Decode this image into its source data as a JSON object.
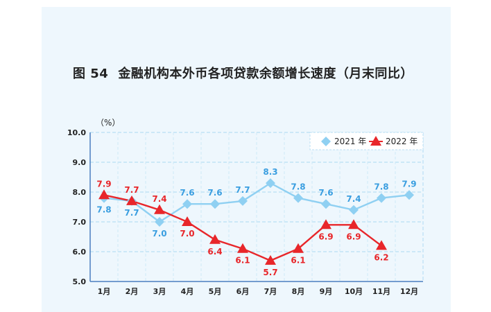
{
  "figure": {
    "number": "图 54",
    "title": "金融机构本外币各项贷款余额增长速度（月末同比）"
  },
  "chart_data": {
    "type": "line",
    "unit_label": "（%）",
    "categories": [
      "1月",
      "2月",
      "3月",
      "4月",
      "5月",
      "6月",
      "7月",
      "8月",
      "9月",
      "10月",
      "11月",
      "12月"
    ],
    "ylim": [
      5.0,
      10.0
    ],
    "yticks": [
      "5.0",
      "6.0",
      "7.0",
      "8.0",
      "9.0",
      "10.0"
    ],
    "grid": true,
    "legend_position": "top-right",
    "series": [
      {
        "name": "2021 年",
        "color": "#8fd0f2",
        "marker": "diamond",
        "values": [
          7.8,
          7.7,
          7.0,
          7.6,
          7.6,
          7.7,
          8.3,
          7.8,
          7.6,
          7.4,
          7.8,
          7.9
        ],
        "labels": [
          "7.8",
          "7.7",
          "7.0",
          "7.6",
          "7.6",
          "7.7",
          "8.3",
          "7.8",
          "7.6",
          "7.4",
          "7.8",
          "7.9"
        ]
      },
      {
        "name": "2022 年",
        "color": "#e8262a",
        "marker": "triangle",
        "values": [
          7.9,
          7.7,
          7.4,
          7.0,
          6.4,
          6.1,
          5.7,
          6.1,
          6.9,
          6.9,
          6.2,
          null
        ],
        "labels": [
          "7.9",
          "7.7",
          "7.4",
          "7.0",
          "6.4",
          "6.1",
          "5.7",
          "6.1",
          "6.9",
          "6.9",
          "6.2",
          null
        ]
      }
    ]
  }
}
